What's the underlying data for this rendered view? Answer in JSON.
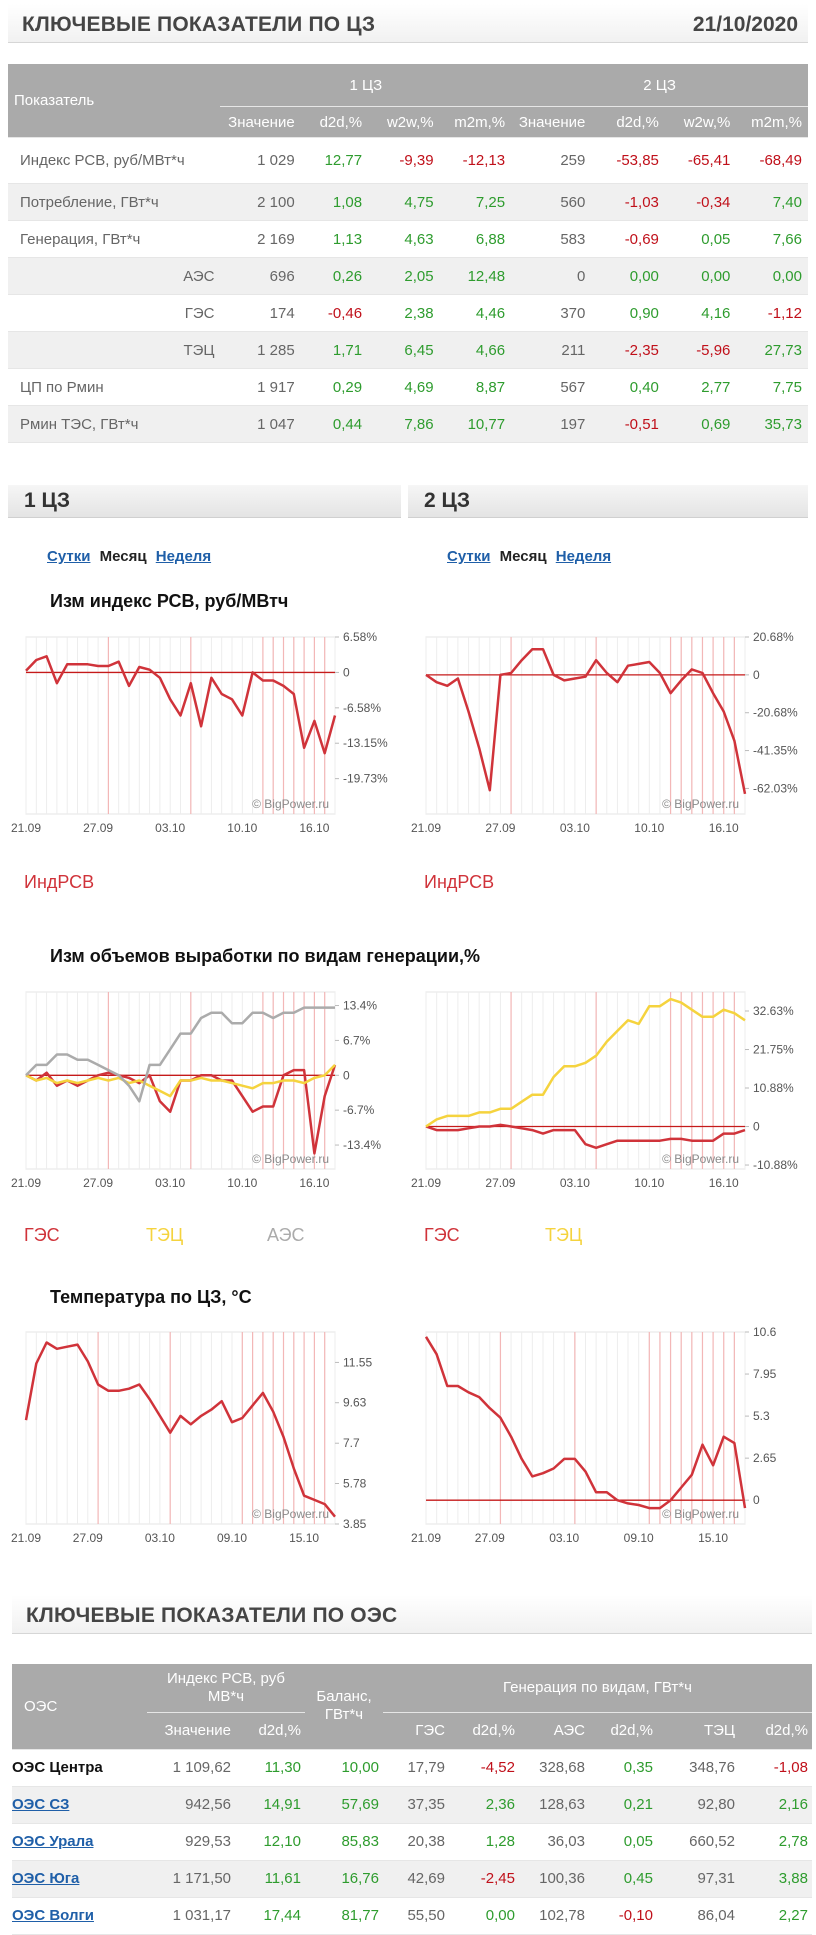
{
  "header": {
    "title": "КЛЮЧЕВЫЕ ПОКАЗАТЕЛИ ПО ЦЗ",
    "date": "21/10/2020"
  },
  "kp_table": {
    "col_indicator": "Показатель",
    "zone1": "1 ЦЗ",
    "zone2": "2 ЦЗ",
    "sub_headers": [
      "Значение",
      "d2d,%",
      "w2w,%",
      "m2m,%",
      "Значение",
      "d2d,%",
      "w2w,%",
      "m2m,%"
    ],
    "rows": [
      {
        "label": "Индекс РСВ, руб/МВт*ч",
        "indent": false,
        "values": [
          "1 029",
          "12,77",
          "-9,39",
          "-12,13",
          "259",
          "-53,85",
          "-65,41",
          "-68,49"
        ]
      },
      {
        "label": "Потребление, ГВт*ч",
        "indent": false,
        "values": [
          "2 100",
          "1,08",
          "4,75",
          "7,25",
          "560",
          "-1,03",
          "-0,34",
          "7,40"
        ]
      },
      {
        "label": "Генерация, ГВт*ч",
        "indent": false,
        "values": [
          "2 169",
          "1,13",
          "4,63",
          "6,88",
          "583",
          "-0,69",
          "0,05",
          "7,66"
        ]
      },
      {
        "label": "АЭС",
        "indent": true,
        "values": [
          "696",
          "0,26",
          "2,05",
          "12,48",
          "0",
          "0,00",
          "0,00",
          "0,00"
        ]
      },
      {
        "label": "ГЭС",
        "indent": true,
        "values": [
          "174",
          "-0,46",
          "2,38",
          "4,46",
          "370",
          "0,90",
          "4,16",
          "-1,12"
        ]
      },
      {
        "label": "ТЭЦ",
        "indent": true,
        "values": [
          "1 285",
          "1,71",
          "6,45",
          "4,66",
          "211",
          "-2,35",
          "-5,96",
          "27,73"
        ]
      },
      {
        "label": "ЦП по Рмин",
        "indent": false,
        "values": [
          "1 917",
          "0,29",
          "4,69",
          "8,87",
          "567",
          "0,40",
          "2,77",
          "7,75"
        ]
      },
      {
        "label": "Рмин ТЭС, ГВт*ч",
        "indent": false,
        "values": [
          "1 047",
          "0,44",
          "7,86",
          "10,77",
          "197",
          "-0,51",
          "0,69",
          "35,73"
        ]
      }
    ]
  },
  "section1": {
    "title": "1 ЦЗ"
  },
  "section2": {
    "title": "2 ЦЗ"
  },
  "periods": {
    "day": "Сутки",
    "month": "Месяц",
    "week": "Неделя"
  },
  "chart_titles": {
    "rsv": "Изм индекс РСВ, руб/МВтч",
    "gen": "Изм объемов выработки по видам генерации,%",
    "temp": "Температура по ЦЗ, °С"
  },
  "watermark": "© BigPower.ru",
  "legends": {
    "rsv": "ИндРСВ",
    "hydro": "ГЭС",
    "chp": "ТЭЦ",
    "nuclear": "АЭС"
  },
  "colors": {
    "red": "#d0333a",
    "yellow": "#f5d33e",
    "gray": "#ababab",
    "green": "#2e9c2e",
    "neg": "#c0101a",
    "link": "#1f5fa8"
  },
  "chart_data": [
    {
      "id": "rsv_z1",
      "type": "line",
      "zone": "1 ЦЗ",
      "title": "Изм индекс РСВ, руб/МВтч",
      "x_ticks": [
        "21.09",
        "27.09",
        "03.10",
        "10.10",
        "16.10"
      ],
      "y_ticks": [
        "6.58%",
        "0",
        "-6.58%",
        "-13.15%",
        "-19.73%"
      ],
      "ylim": [
        -26.3,
        6.58
      ],
      "n": 31,
      "baseline": 0,
      "series": [
        {
          "name": "ИндРСВ",
          "color": "#d0333a",
          "values": [
            0.3,
            2.3,
            3,
            -2,
            1.5,
            1.5,
            1.5,
            1.2,
            1.2,
            2,
            -2.5,
            1,
            0.5,
            -1,
            -5,
            -8,
            -2,
            -10,
            -1,
            -4,
            -5,
            -8,
            0,
            -1.5,
            -1.5,
            -2.5,
            -4,
            -14,
            -9,
            -15,
            -8
          ]
        }
      ],
      "vlines": [
        8,
        16,
        23,
        24,
        25,
        26,
        27,
        28,
        29
      ]
    },
    {
      "id": "rsv_z2",
      "type": "line",
      "zone": "2 ЦЗ",
      "title": "Изм индекс РСВ, руб/МВтч",
      "x_ticks": [
        "21.09",
        "27.09",
        "03.10",
        "10.10",
        "16.10"
      ],
      "y_ticks": [
        "20.68%",
        "0",
        "-20.68%",
        "-41.35%",
        "-62.03%"
      ],
      "ylim": [
        -76,
        20.68
      ],
      "n": 31,
      "baseline": 0,
      "series": [
        {
          "name": "ИндРСВ",
          "color": "#d0333a",
          "values": [
            0,
            -4,
            -6,
            -2,
            -20,
            -40,
            -63,
            0,
            1,
            8,
            14,
            14,
            0,
            -3,
            -2,
            -1,
            8,
            1,
            -4,
            5,
            6,
            7,
            1,
            -10,
            -3,
            3,
            1,
            -10,
            -20,
            -36,
            -65
          ]
        }
      ],
      "vlines": [
        8,
        16,
        23,
        24,
        25,
        26,
        27,
        28,
        29
      ]
    },
    {
      "id": "gen_z1",
      "type": "line",
      "zone": "1 ЦЗ",
      "title": "Изм объемов выработки по видам генерации,%",
      "x_ticks": [
        "21.09",
        "27.09",
        "03.10",
        "10.10",
        "16.10"
      ],
      "y_ticks": [
        "13.4%",
        "6.7%",
        "0",
        "-6.7%",
        "-13.4%"
      ],
      "ylim": [
        -18,
        16
      ],
      "n": 31,
      "baseline": 0,
      "series": [
        {
          "name": "ГЭС",
          "color": "#d0333a",
          "values": [
            0,
            -1,
            0.5,
            -2,
            -1,
            -2,
            -1,
            0,
            0.5,
            0,
            -0.5,
            -1.5,
            0,
            -5,
            -7,
            -1,
            -1,
            0,
            0,
            -1,
            -1,
            -4,
            -7,
            -6,
            -6,
            0,
            1,
            1,
            -15,
            -4,
            2
          ]
        },
        {
          "name": "ТЭЦ",
          "color": "#f5d33e",
          "values": [
            0,
            -1,
            -0.5,
            -1.5,
            -1,
            -1.5,
            -1,
            -0.5,
            -1,
            -0.5,
            -1.5,
            -1,
            -2,
            -3,
            -4,
            -1,
            -1,
            -0.5,
            -1,
            -1,
            -1.5,
            -2,
            -2.5,
            -1.5,
            -1.5,
            -1,
            -1,
            -1.5,
            -0.5,
            0,
            2
          ]
        },
        {
          "name": "АЭС",
          "color": "#ababab",
          "values": [
            0,
            2,
            2,
            4,
            4,
            3,
            3,
            2,
            1,
            0,
            -2,
            -5,
            2,
            2,
            5,
            8,
            8,
            11,
            12,
            12,
            10,
            10,
            12,
            12,
            11,
            12,
            12,
            13,
            13,
            13,
            13
          ]
        }
      ],
      "vlines": [
        8,
        16,
        23,
        24,
        25,
        26,
        27,
        28,
        29
      ]
    },
    {
      "id": "gen_z2",
      "type": "line",
      "zone": "2 ЦЗ",
      "title": "Изм объемов выработки по видам генерации,%",
      "x_ticks": [
        "21.09",
        "27.09",
        "03.10",
        "10.10",
        "16.10"
      ],
      "y_ticks": [
        "32.63%",
        "21.75%",
        "10.88%",
        "0",
        "-10.88%"
      ],
      "ylim": [
        -12,
        38
      ],
      "n": 31,
      "baseline": 0,
      "series": [
        {
          "name": "ГЭС",
          "color": "#d0333a",
          "values": [
            0,
            -1,
            -1,
            -1,
            -0.5,
            0,
            0,
            0.5,
            0,
            -0.5,
            -1,
            -2,
            -1,
            -1,
            -1,
            -5,
            -6,
            -5,
            -4,
            -4,
            -4,
            -4,
            -4,
            -3.5,
            -3.5,
            -4,
            -4,
            -4,
            -2,
            -2,
            -1
          ]
        },
        {
          "name": "ТЭЦ",
          "color": "#f5d33e",
          "values": [
            0,
            2,
            3,
            3,
            3,
            4,
            4,
            5,
            5,
            7,
            9,
            9,
            14,
            17,
            17,
            18,
            20,
            24,
            27,
            30,
            29,
            34,
            34,
            36,
            35,
            33,
            31,
            31,
            33,
            32,
            30
          ]
        }
      ],
      "vlines": [
        8,
        16,
        23,
        24,
        25,
        26,
        27,
        28,
        29
      ]
    },
    {
      "id": "temp_z1",
      "type": "line",
      "zone": "1 ЦЗ",
      "title": "Температура по ЦЗ, °С",
      "x_ticks": [
        "21.09",
        "27.09",
        "03.10",
        "09.10",
        "15.10"
      ],
      "y_ticks": [
        "11.55",
        "9.63",
        "7.7",
        "5.78",
        "3.85"
      ],
      "ylim": [
        3.85,
        13
      ],
      "n": 31,
      "baseline": null,
      "series": [
        {
          "name": "Температура",
          "color": "#d0333a",
          "values": [
            8.8,
            11.5,
            12.5,
            12.2,
            12.3,
            12.4,
            11.6,
            10.5,
            10.2,
            10.2,
            10.3,
            10.5,
            9.8,
            9.0,
            8.2,
            9.0,
            8.6,
            9.0,
            9.3,
            9.7,
            8.7,
            8.9,
            9.5,
            10.1,
            9.2,
            8.0,
            6.5,
            5.2,
            5.0,
            4.8,
            4.2
          ]
        }
      ],
      "vlines": [
        7,
        14,
        21,
        22,
        23,
        24,
        25,
        26,
        27,
        28,
        29
      ]
    },
    {
      "id": "temp_z2",
      "type": "line",
      "zone": "2 ЦЗ",
      "title": "Температура по ЦЗ, °С",
      "x_ticks": [
        "21.09",
        "27.09",
        "03.10",
        "09.10",
        "15.10"
      ],
      "y_ticks": [
        "10.6",
        "7.95",
        "5.3",
        "2.65",
        "0"
      ],
      "ylim": [
        -1.5,
        10.6
      ],
      "n": 31,
      "baseline": 0,
      "series": [
        {
          "name": "Температура",
          "color": "#d0333a",
          "values": [
            10.3,
            9.2,
            7.2,
            7.2,
            6.8,
            6.5,
            5.8,
            5.2,
            4.0,
            2.6,
            1.5,
            1.7,
            2.0,
            2.6,
            2.6,
            1.8,
            0.5,
            0.5,
            0,
            -0.2,
            -0.3,
            -0.5,
            -0.5,
            0,
            0.8,
            1.6,
            3.5,
            2.2,
            4.0,
            3.6,
            -0.5
          ]
        }
      ],
      "vlines": [
        7,
        14,
        21,
        22,
        23,
        24,
        25,
        26,
        27,
        28,
        29
      ]
    }
  ],
  "oes": {
    "title": "КЛЮЧЕВЫЕ ПОКАЗАТЕЛИ ПО ОЭС",
    "col_oes": "ОЭС",
    "col_rsv": "Индекс РСВ, руб МВ*ч",
    "col_balance": "Баланс, ГВт*ч",
    "col_gen": "Генерация по видам, ГВт*ч",
    "sub_headers": [
      "Значение",
      "d2d,%",
      "ГЭС",
      "d2d,%",
      "АЭС",
      "d2d,%",
      "ТЭЦ",
      "d2d,%"
    ],
    "rows": [
      {
        "name": "ОЭС Центра",
        "link": false,
        "values": [
          "1 109,62",
          "11,30",
          "10,00",
          "17,79",
          "-4,52",
          "328,68",
          "0,35",
          "348,76",
          "-1,08"
        ]
      },
      {
        "name": "ОЭС СЗ",
        "link": true,
        "values": [
          "942,56",
          "14,91",
          "57,69",
          "37,35",
          "2,36",
          "128,63",
          "0,21",
          "92,80",
          "2,16"
        ]
      },
      {
        "name": "ОЭС Урала",
        "link": true,
        "values": [
          "929,53",
          "12,10",
          "85,83",
          "20,38",
          "1,28",
          "36,03",
          "0,05",
          "660,52",
          "2,78"
        ]
      },
      {
        "name": "ОЭС Юга",
        "link": true,
        "values": [
          "1 171,50",
          "11,61",
          "16,76",
          "42,69",
          "-2,45",
          "100,36",
          "0,45",
          "97,31",
          "3,88"
        ]
      },
      {
        "name": "ОЭС Волги",
        "link": true,
        "values": [
          "1 031,17",
          "17,44",
          "81,77",
          "55,50",
          "0,00",
          "102,78",
          "-0,10",
          "86,04",
          "2,27"
        ]
      }
    ]
  }
}
